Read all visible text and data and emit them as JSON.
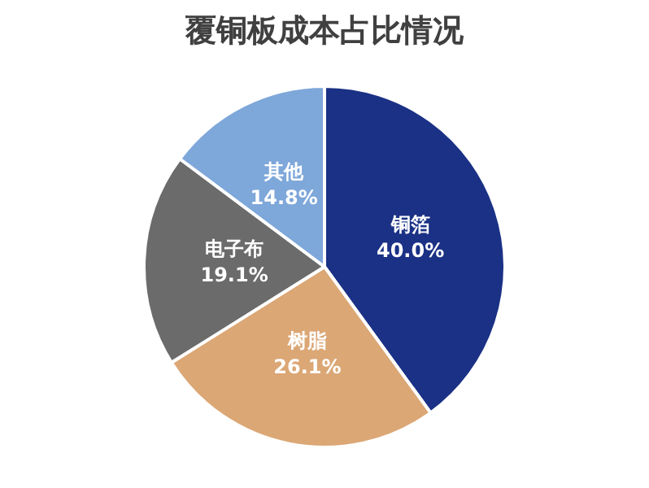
{
  "chart_data": {
    "type": "pie",
    "title": "覆铜板成本占比情况",
    "categories": [
      "铜箔",
      "树脂",
      "电子布",
      "其他"
    ],
    "values": [
      40.0,
      26.1,
      19.1,
      14.8
    ],
    "value_labels": [
      "40.0%",
      "26.1%",
      "19.1%",
      "14.8%"
    ],
    "colors": [
      "#1a3185",
      "#dba775",
      "#6b6b6b",
      "#7ea7da"
    ],
    "legend": false
  }
}
